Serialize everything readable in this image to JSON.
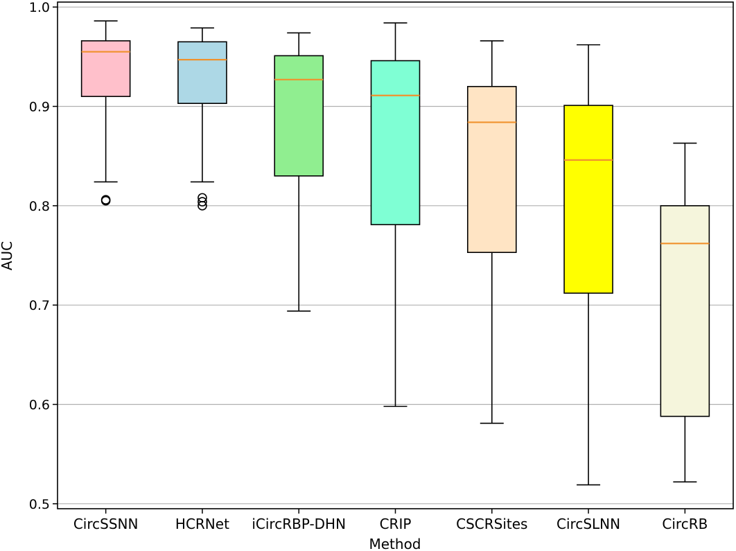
{
  "chart_data": {
    "type": "box",
    "xlabel": "Method",
    "ylabel": "AUC",
    "ylim": [
      0.495,
      1.005
    ],
    "yticks": [
      "0.5",
      "0.6",
      "0.7",
      "0.8",
      "0.9",
      "1.0"
    ],
    "grid": "horizontal",
    "median_color": "#f0922d",
    "categories": [
      "CircSSNN",
      "HCRNet",
      "iCircRBP-DHN",
      "CRIP",
      "CSCRSites",
      "CircSLNN",
      "CircRB"
    ],
    "boxes": [
      {
        "name": "CircSSNN",
        "color": "#ffc0cb",
        "whisker_low": 0.824,
        "q1": 0.91,
        "median": 0.955,
        "q3": 0.966,
        "whisker_high": 0.986,
        "outliers": [
          0.805,
          0.806
        ]
      },
      {
        "name": "HCRNet",
        "color": "#add8e6",
        "whisker_low": 0.824,
        "q1": 0.903,
        "median": 0.947,
        "q3": 0.965,
        "whisker_high": 0.979,
        "outliers": [
          0.8,
          0.804,
          0.808
        ]
      },
      {
        "name": "iCircRBP-DHN",
        "color": "#90ee90",
        "whisker_low": 0.694,
        "q1": 0.83,
        "median": 0.927,
        "q3": 0.951,
        "whisker_high": 0.974,
        "outliers": []
      },
      {
        "name": "CRIP",
        "color": "#7fffd4",
        "whisker_low": 0.598,
        "q1": 0.781,
        "median": 0.911,
        "q3": 0.946,
        "whisker_high": 0.984,
        "outliers": []
      },
      {
        "name": "CSCRSites",
        "color": "#ffe4c4",
        "whisker_low": 0.581,
        "q1": 0.753,
        "median": 0.884,
        "q3": 0.92,
        "whisker_high": 0.966,
        "outliers": []
      },
      {
        "name": "CircSLNN",
        "color": "#ffff00",
        "whisker_low": 0.519,
        "q1": 0.712,
        "median": 0.846,
        "q3": 0.901,
        "whisker_high": 0.962,
        "outliers": []
      },
      {
        "name": "CircRB",
        "color": "#f5f5dc",
        "whisker_low": 0.522,
        "q1": 0.588,
        "median": 0.762,
        "q3": 0.8,
        "whisker_high": 0.863,
        "outliers": []
      }
    ]
  }
}
